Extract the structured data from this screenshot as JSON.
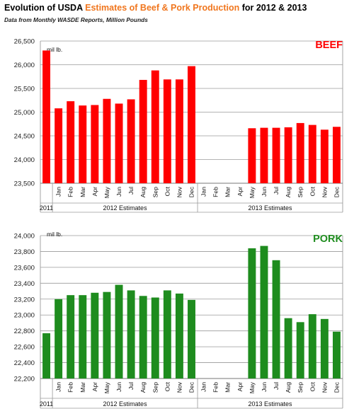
{
  "header": {
    "title_prefix": "Evolution of USDA ",
    "title_highlight": "Estimates of Beef & Pork Production",
    "title_suffix": " for 2012 & 2013",
    "subtitle": "Data from Monthly WASDE Reports, Million Pounds"
  },
  "colors": {
    "beef": "#ff0000",
    "pork": "#1e8c1e",
    "title_highlight": "#f0761e",
    "grid": "#9a9a9a"
  },
  "chart_data": [
    {
      "type": "bar",
      "series_label": "BEEF",
      "unit_label": "mil lb.",
      "ylim": [
        23500,
        26500
      ],
      "yticks": [
        "23,500",
        "24,000",
        "24,500",
        "25,000",
        "25,500",
        "26,000",
        "26,500"
      ],
      "categories": [
        "2011",
        "Jan",
        "Feb",
        "Mar",
        "Apr",
        "May",
        "Jun",
        "Jul",
        "Aug",
        "Sep",
        "Oct",
        "Nov",
        "Dec",
        "Jan",
        "Feb",
        "Mar",
        "Apr",
        "May",
        "Jun",
        "Jul",
        "Aug",
        "Sep",
        "Oct",
        "Nov",
        "Dec"
      ],
      "values": [
        26300,
        25080,
        25230,
        25140,
        25150,
        25280,
        25180,
        25270,
        25680,
        25880,
        25690,
        25690,
        25970,
        null,
        null,
        null,
        null,
        24660,
        24670,
        24670,
        24680,
        24770,
        24730,
        24630,
        24690
      ],
      "groups": [
        {
          "label": "2011",
          "start": 0,
          "end": 0
        },
        {
          "label": "2012 Estimates",
          "start": 1,
          "end": 12
        },
        {
          "label": "2013 Estimates",
          "start": 13,
          "end": 24
        }
      ]
    },
    {
      "type": "bar",
      "series_label": "PORK",
      "unit_label": "mil lb.",
      "ylim": [
        22200,
        24000
      ],
      "yticks": [
        "22,200",
        "22,400",
        "22,600",
        "22,800",
        "23,000",
        "23,200",
        "23,400",
        "23,600",
        "23,800",
        "24,000"
      ],
      "categories": [
        "2011",
        "Jan",
        "Feb",
        "Mar",
        "Apr",
        "May",
        "Jun",
        "Jul",
        "Aug",
        "Sep",
        "Oct",
        "Nov",
        "Dec",
        "Jan",
        "Feb",
        "Mar",
        "Apr",
        "May",
        "Jun",
        "Jul",
        "Aug",
        "Sep",
        "Oct",
        "Nov",
        "Dec"
      ],
      "values": [
        22770,
        23200,
        23250,
        23250,
        23280,
        23290,
        23380,
        23310,
        23240,
        23220,
        23310,
        23270,
        23190,
        null,
        null,
        null,
        null,
        23840,
        23870,
        23690,
        22960,
        22910,
        23010,
        22950,
        22790
      ],
      "groups": [
        {
          "label": "2011",
          "start": 0,
          "end": 0
        },
        {
          "label": "2012 Estimates",
          "start": 1,
          "end": 12
        },
        {
          "label": "2013 Estimates",
          "start": 13,
          "end": 24
        }
      ]
    }
  ]
}
